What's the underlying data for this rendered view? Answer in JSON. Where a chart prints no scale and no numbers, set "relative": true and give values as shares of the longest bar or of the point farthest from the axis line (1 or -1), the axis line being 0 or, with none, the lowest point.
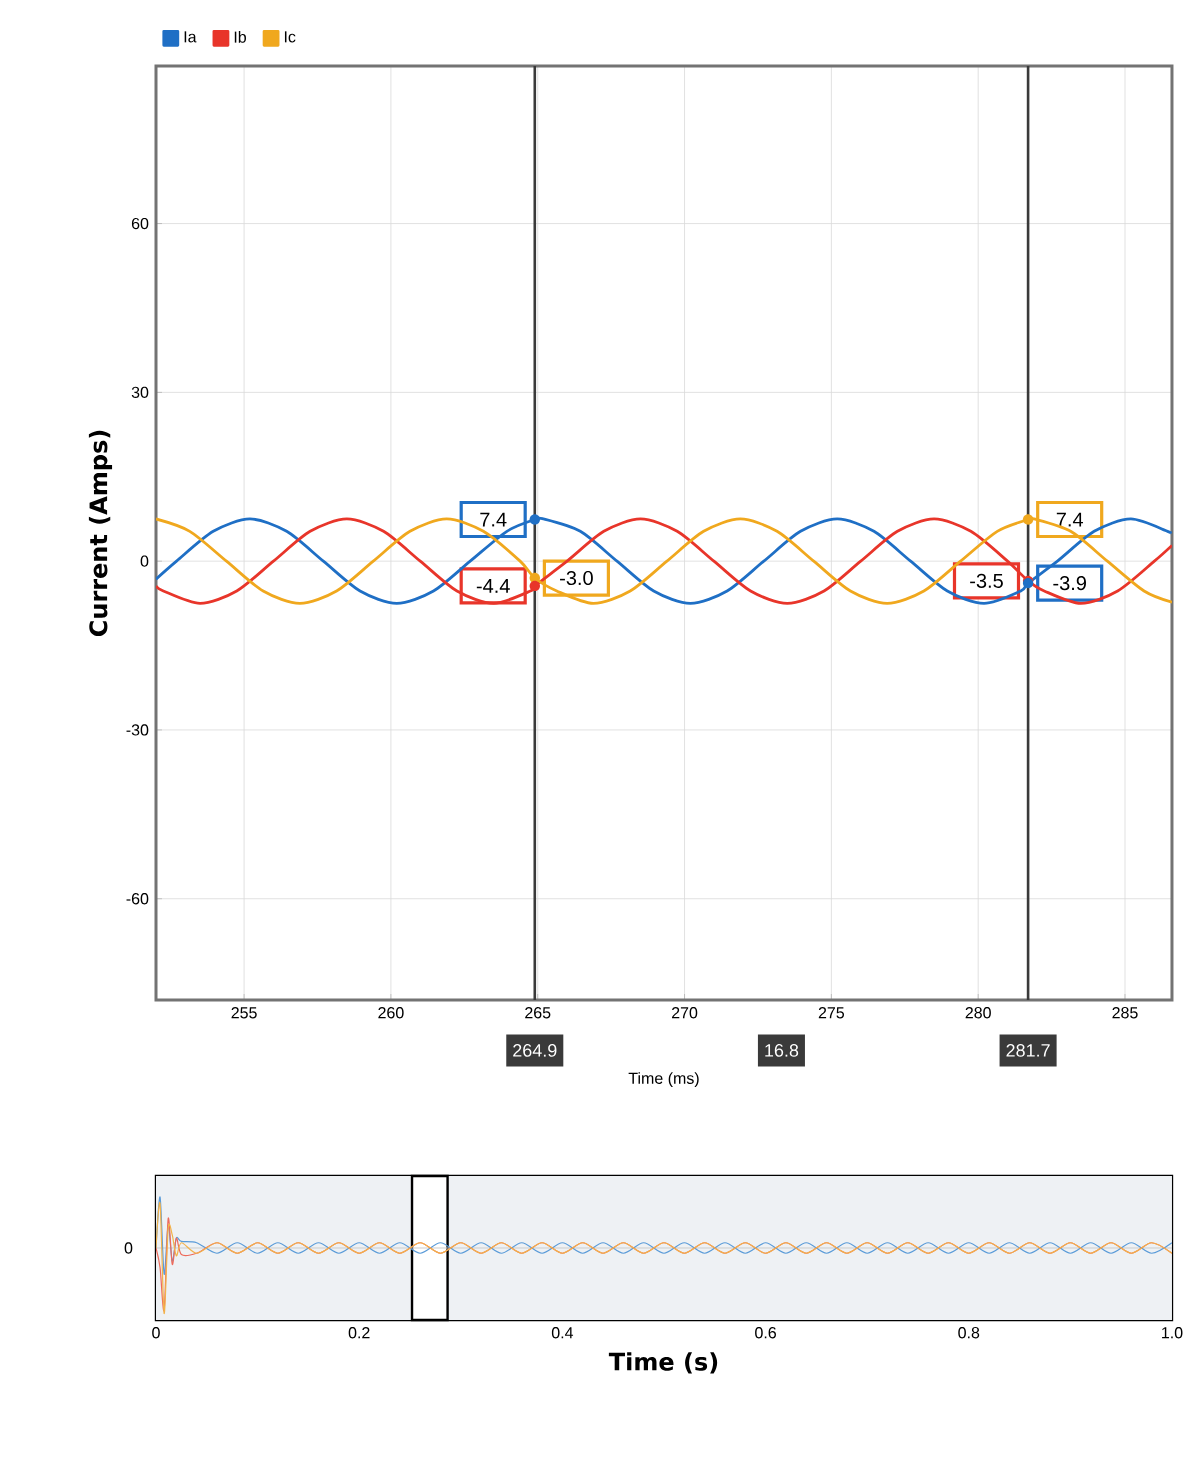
{
  "chart_data": [
    {
      "type": "line",
      "xlabel": "Time (ms)",
      "ylabel": "Current (Amps)",
      "xlim": [
        252,
        286.6
      ],
      "ylim": [
        -78,
        88
      ],
      "xticks": [
        255,
        260,
        265,
        270,
        275,
        280,
        285
      ],
      "yticks": [
        -60,
        -30,
        0,
        30,
        60
      ],
      "grid": true,
      "legend": "top left",
      "series": [
        {
          "name": "Ia",
          "color": "#1f6fc5",
          "x": [
            252,
            252.7,
            253.95,
            255.2,
            256.45,
            257.7,
            258.95,
            260.2,
            261.45,
            262.7,
            263.95,
            264.9,
            265.2,
            266.45,
            267.7,
            268.95,
            270.2,
            271.45,
            272.7,
            273.95,
            275.2,
            276.45,
            277.7,
            278.95,
            280.2,
            281.45,
            281.7,
            282.7,
            283.95,
            285.2,
            286.45,
            286.6
          ],
          "values": [
            -3.2,
            0,
            5.3,
            7.5,
            5.3,
            0,
            -5.3,
            -7.5,
            -5.3,
            0,
            5.3,
            7.4,
            7.5,
            5.3,
            0,
            -5.3,
            -7.5,
            -5.3,
            0,
            5.3,
            7.5,
            5.3,
            0,
            -5.3,
            -7.5,
            -5.3,
            -3.9,
            0,
            5.3,
            7.5,
            5.3,
            4.8
          ],
          "value_labels": [
            null,
            null,
            null,
            null,
            null,
            null,
            null,
            null,
            null,
            null,
            null,
            "7.4",
            null,
            null,
            null,
            null,
            null,
            null,
            null,
            null,
            null,
            null,
            null,
            null,
            null,
            null,
            "-3.9",
            null,
            null,
            null,
            null,
            null
          ]
        },
        {
          "name": "Ib",
          "color": "#e8352a",
          "x": [
            252,
            252.25,
            253.5,
            254.75,
            256,
            257.25,
            258.5,
            259.75,
            261,
            262.25,
            263.5,
            264.75,
            264.9,
            266,
            267.25,
            268.5,
            269.75,
            271,
            272.25,
            273.5,
            274.75,
            276,
            277.25,
            278.5,
            279.75,
            281,
            281.7,
            282.25,
            283.5,
            284.75,
            286,
            286.6
          ],
          "values": [
            -4.4,
            -5.3,
            -7.5,
            -5.3,
            0,
            5.3,
            7.5,
            5.3,
            0,
            -5.3,
            -7.5,
            -5.3,
            -4.4,
            0,
            5.3,
            7.5,
            5.3,
            0,
            -5.3,
            -7.5,
            -5.3,
            0,
            5.3,
            7.5,
            5.3,
            0,
            -3.5,
            -5.3,
            -7.5,
            -5.3,
            0,
            2.8
          ],
          "value_labels": [
            null,
            null,
            null,
            null,
            null,
            null,
            null,
            null,
            null,
            null,
            null,
            null,
            "-4.4",
            null,
            null,
            null,
            null,
            null,
            null,
            null,
            null,
            null,
            null,
            null,
            null,
            null,
            "-3.5",
            null,
            null,
            null,
            null,
            null
          ]
        },
        {
          "name": "Ic",
          "color": "#f0a81e",
          "x": [
            252,
            253.15,
            254.4,
            255.65,
            256.9,
            258.15,
            259.4,
            260.65,
            261.9,
            263.15,
            264.4,
            264.9,
            265.65,
            266.9,
            268.15,
            269.4,
            270.65,
            271.9,
            273.15,
            274.4,
            275.65,
            276.9,
            278.15,
            279.4,
            280.65,
            281.7,
            281.9,
            283.15,
            284.4,
            285.65,
            286.6
          ],
          "values": [
            7.5,
            5.3,
            0,
            -5.3,
            -7.5,
            -5.3,
            0,
            5.3,
            7.5,
            5.3,
            0,
            -3.0,
            -5.3,
            -7.5,
            -5.3,
            0,
            5.3,
            7.5,
            5.3,
            0,
            -5.3,
            -7.5,
            -5.3,
            0,
            5.3,
            7.4,
            7.5,
            5.3,
            0,
            -5.3,
            -7.3
          ],
          "value_labels": [
            null,
            null,
            null,
            null,
            null,
            null,
            null,
            null,
            null,
            null,
            null,
            "-3.0",
            null,
            null,
            null,
            null,
            null,
            null,
            null,
            null,
            null,
            null,
            null,
            null,
            null,
            "7.4",
            null,
            null,
            null,
            null,
            null
          ]
        }
      ],
      "ref_lines": [
        {
          "axis": "x",
          "value": 264.9,
          "label": "264.9",
          "color": "#3a3a3a"
        },
        {
          "axis": "x",
          "value": 281.7,
          "label": "281.7",
          "color": "#3a3a3a"
        }
      ],
      "annotations": [
        "16.8"
      ]
    },
    {
      "type": "line",
      "xlabel": "Time (s)",
      "relative": true,
      "xlim": [
        0,
        1.0
      ],
      "xticks": [
        0,
        0.2,
        0.4,
        0.6,
        0.8,
        {
          "value": 1.0,
          "label": "1.0"
        }
      ],
      "grid": "x",
      "x": [
        0,
        0.004,
        0.008,
        0.012,
        0.016,
        0.02,
        0.025,
        0.04,
        0.06,
        0.08,
        0.1,
        0.12,
        0.14,
        0.16,
        0.18,
        0.2,
        0.22,
        0.24,
        0.26,
        0.28,
        0.3,
        0.32,
        0.34,
        0.36,
        0.38,
        0.4,
        0.42,
        0.44,
        0.46,
        0.48,
        0.5,
        0.52,
        0.54,
        0.56,
        0.58,
        0.6,
        0.62,
        0.64,
        0.66,
        0.68,
        0.7,
        0.72,
        0.74,
        0.76,
        0.78,
        0.8,
        0.82,
        0.84,
        0.86,
        0.88,
        0.9,
        0.92,
        0.94,
        0.96,
        0.98,
        1.0
      ],
      "series": [
        {
          "color": "#5a9bd8",
          "values": [
            0,
            0.78,
            -0.4,
            0.35,
            -0.2,
            0.15,
            0.1,
            0.08,
            -0.08,
            0.08,
            -0.08,
            0.08,
            -0.08,
            0.08,
            -0.08,
            0.08,
            -0.08,
            0.08,
            -0.08,
            0.08,
            -0.08,
            0.08,
            -0.08,
            0.08,
            -0.08,
            0.08,
            -0.08,
            0.08,
            -0.08,
            0.08,
            -0.08,
            0.08,
            -0.08,
            0.08,
            -0.08,
            0.08,
            -0.08,
            0.08,
            -0.08,
            0.08,
            -0.08,
            0.08,
            -0.08,
            0.08,
            -0.08,
            0.08,
            -0.08,
            0.08,
            -0.08,
            0.08,
            -0.08,
            0.08,
            -0.08,
            0.08,
            -0.08,
            0.08
          ]
        },
        {
          "color": "#ee6a5a",
          "values": [
            0,
            -0.3,
            -0.95,
            0.45,
            -0.25,
            0.15,
            -0.1,
            -0.08,
            0.08,
            -0.08,
            0.08,
            -0.08,
            0.08,
            -0.08,
            0.08,
            -0.08,
            0.08,
            -0.08,
            0.08,
            -0.08,
            0.08,
            -0.08,
            0.08,
            -0.08,
            0.08,
            -0.08,
            0.08,
            -0.08,
            0.08,
            -0.08,
            0.08,
            -0.08,
            0.08,
            -0.08,
            0.08,
            -0.08,
            0.08,
            -0.08,
            0.08,
            -0.08,
            0.08,
            -0.08,
            0.08,
            -0.08,
            0.08,
            -0.08,
            0.08,
            -0.08,
            0.08,
            -0.08,
            0.08,
            -0.08,
            0.08,
            -0.08,
            0.08,
            -0.08
          ]
        },
        {
          "color": "#f2b24a",
          "values": [
            0,
            0.68,
            -1,
            0.3,
            0.2,
            -0.12,
            0.08,
            -0.08,
            0.08,
            -0.08,
            0.08,
            -0.08,
            0.08,
            -0.08,
            0.08,
            -0.08,
            0.08,
            -0.08,
            0.08,
            -0.08,
            0.08,
            -0.08,
            0.08,
            -0.08,
            0.08,
            -0.08,
            0.08,
            -0.08,
            0.08,
            -0.08,
            0.08,
            -0.08,
            0.08,
            -0.08,
            0.08,
            -0.08,
            0.08,
            -0.08,
            0.08,
            -0.08,
            0.08,
            -0.08,
            0.08,
            -0.08,
            0.08,
            -0.08,
            0.08,
            -0.08,
            0.08,
            -0.08,
            0.08,
            -0.08,
            0.08,
            -0.08,
            0.08,
            -0.08
          ]
        }
      ],
      "bands": [
        {
          "axis": "x",
          "from": 0.252,
          "to": 0.287,
          "color": "#ffffff"
        }
      ],
      "annotations": [
        "0"
      ]
    }
  ]
}
